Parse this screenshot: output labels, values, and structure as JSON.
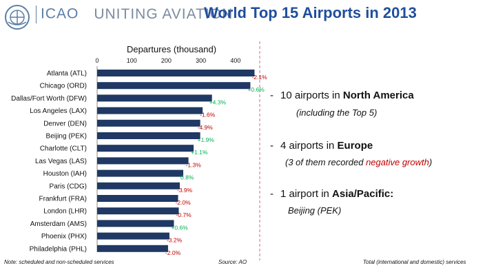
{
  "header": {
    "brand": "ICAO",
    "brand_tagline": "UNITING AVIATION",
    "title": "World Top 15 Airports in 2013"
  },
  "chart_data": {
    "type": "bar",
    "orientation": "horizontal",
    "title": "Departures (thousand)",
    "categories": [
      "Atlanta (ATL)",
      "Chicago (ORD)",
      "Dallas/Fort Worth (DFW)",
      "Los Angeles (LAX)",
      "Denver (DEN)",
      "Beijing (PEK)",
      "Charlotte (CLT)",
      "Las Vegas (LAS)",
      "Houston (IAH)",
      "Paris (CDG)",
      "Frankfurt (FRA)",
      "London (LHR)",
      "Amsterdam (AMS)",
      "Phoenix (PHX)",
      "Philadelphia (PHL)"
    ],
    "values": [
      455,
      443,
      332,
      305,
      298,
      298,
      279,
      264,
      249,
      239,
      234,
      236,
      222,
      209,
      205
    ],
    "data_labels": [
      "-2.1%",
      "+0.6%",
      "+4.3%",
      "-1.6%",
      "-4.9%",
      "+1.9%",
      "+1.1%",
      "-1.3%",
      "0.8%",
      "-3.9%",
      "-2.0%",
      "-0.7%",
      "+0.6%",
      "-3.2%",
      "-2.0%"
    ],
    "growth_values": [
      -2.1,
      0.6,
      4.3,
      -1.6,
      -4.9,
      1.9,
      1.1,
      -1.3,
      0.8,
      -3.9,
      -2.0,
      -0.7,
      0.6,
      -3.2,
      -2.0
    ],
    "xticks": [
      "0",
      "100",
      "200",
      "300",
      "400"
    ],
    "xlim": [
      0,
      470
    ],
    "grid": false,
    "bar_color": "#1f3864",
    "positive_color": "#00b050",
    "negative_color": "#c00000"
  },
  "summary": {
    "points": [
      {
        "dash": "-",
        "pre": "10 airports in ",
        "bold": "North America",
        "post": "",
        "sub_pre": "(including the Top 5)",
        "sub_red": "",
        "sub_post": ""
      },
      {
        "dash": "-",
        "pre": "4 airports in ",
        "bold": "Europe",
        "post": "",
        "sub_pre": "(3 of them recorded ",
        "sub_red": "negative growth",
        "sub_post": ")"
      },
      {
        "dash": "-",
        "pre": "1 airport in ",
        "bold": "Asia/Pacific:",
        "post": "",
        "sub_pre": "Beijing (PEK)",
        "sub_red": "",
        "sub_post": ""
      }
    ]
  },
  "footer": {
    "note": "Note: scheduled and non-scheduled services",
    "source": "Source: AO",
    "right_note": "Total (international and domestic) services"
  }
}
